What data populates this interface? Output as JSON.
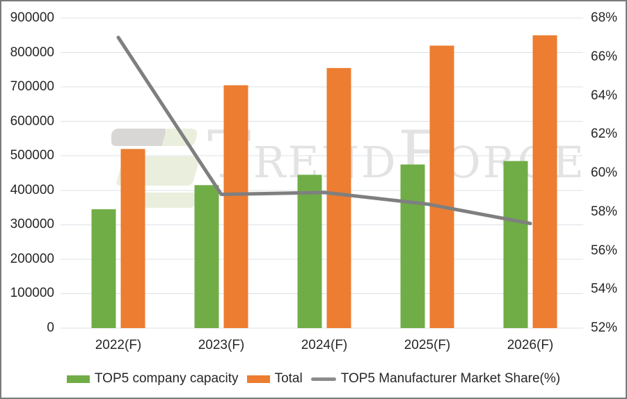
{
  "chart_data": {
    "type": "bar",
    "title": "",
    "categories": [
      "2022(F)",
      "2023(F)",
      "2024(F)",
      "2025(F)",
      "2026(F)"
    ],
    "series": [
      {
        "name": "TOP5 company capacity",
        "type": "bar",
        "axis": "left",
        "color": "#70AD47",
        "values": [
          345000,
          415000,
          445000,
          475000,
          485000
        ]
      },
      {
        "name": "Total",
        "type": "bar",
        "axis": "left",
        "color": "#ED7D31",
        "values": [
          520000,
          705000,
          755000,
          820000,
          850000
        ]
      },
      {
        "name": "TOP5 Manufacturer Market Share(%)",
        "type": "line",
        "axis": "right",
        "color": "#7F7F7F",
        "values": [
          67.0,
          58.9,
          59.0,
          58.4,
          57.4
        ]
      }
    ],
    "left_axis": {
      "min": 0,
      "max": 900000,
      "step": 100000,
      "tick_labels": [
        "0",
        "100000",
        "200000",
        "300000",
        "400000",
        "500000",
        "600000",
        "700000",
        "800000",
        "900000"
      ]
    },
    "right_axis": {
      "min": 52,
      "max": 68,
      "step": 2,
      "unit": "%",
      "tick_labels": [
        "52%",
        "54%",
        "56%",
        "58%",
        "60%",
        "62%",
        "64%",
        "66%",
        "68%"
      ]
    },
    "grid": true,
    "legend_position": "bottom"
  },
  "watermark": {
    "name": "TrendForce",
    "parts": [
      "T",
      "REND",
      "F",
      "ORCE"
    ],
    "text_color": "#E3E3E3",
    "logo_colors": {
      "gray": "#D9D7D5",
      "green": "#E9EFDC"
    }
  },
  "frame": {
    "border_color": "#7A7A7A",
    "background": "#FFFFFF",
    "gridline_color": "#DCE0E6",
    "tick_color": "#262626"
  }
}
